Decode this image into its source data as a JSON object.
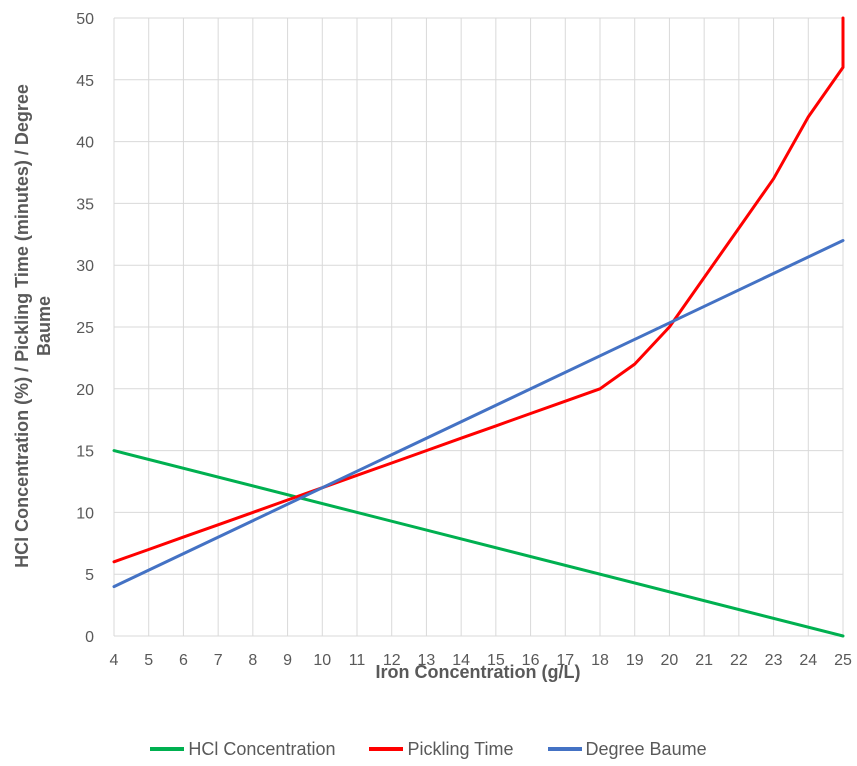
{
  "chart_data": {
    "type": "line",
    "title": "",
    "xlabel": "Iron Concentration (g/L)",
    "ylabel_line1": "HCl Concentration (%) / Pickling Time (minutes) / Degree",
    "ylabel_line2": "Baume",
    "xlim": [
      4,
      25
    ],
    "ylim": [
      0,
      50
    ],
    "x_ticks": [
      "4",
      "5",
      "6",
      "7",
      "8",
      "9",
      "10",
      "11",
      "12",
      "13",
      "14",
      "15",
      "16",
      "17",
      "18",
      "19",
      "20",
      "21",
      "22",
      "23",
      "24",
      "25"
    ],
    "y_ticks": [
      "0",
      "5",
      "10",
      "15",
      "20",
      "25",
      "30",
      "35",
      "40",
      "45",
      "50"
    ],
    "grid": true,
    "legend_position": "bottom",
    "series": [
      {
        "name": "HCl Concentration",
        "color": "#00b050",
        "x": [
          4,
          25
        ],
        "y": [
          15,
          0
        ]
      },
      {
        "name": "Pickling Time",
        "color": "#ff0000",
        "x": [
          4,
          5,
          6,
          7,
          8,
          9,
          10,
          11,
          12,
          13,
          14,
          15,
          16,
          17,
          18,
          19,
          20,
          21,
          22,
          23,
          24,
          25,
          25
        ],
        "y": [
          6,
          7,
          8,
          9,
          10,
          11,
          12,
          13,
          14,
          15,
          16,
          17,
          18,
          19,
          20,
          22,
          25,
          29,
          33,
          37,
          42,
          46,
          50
        ]
      },
      {
        "name": "Degree Baume",
        "color": "#4472c4",
        "x": [
          4,
          25
        ],
        "y": [
          4,
          32
        ]
      }
    ]
  }
}
